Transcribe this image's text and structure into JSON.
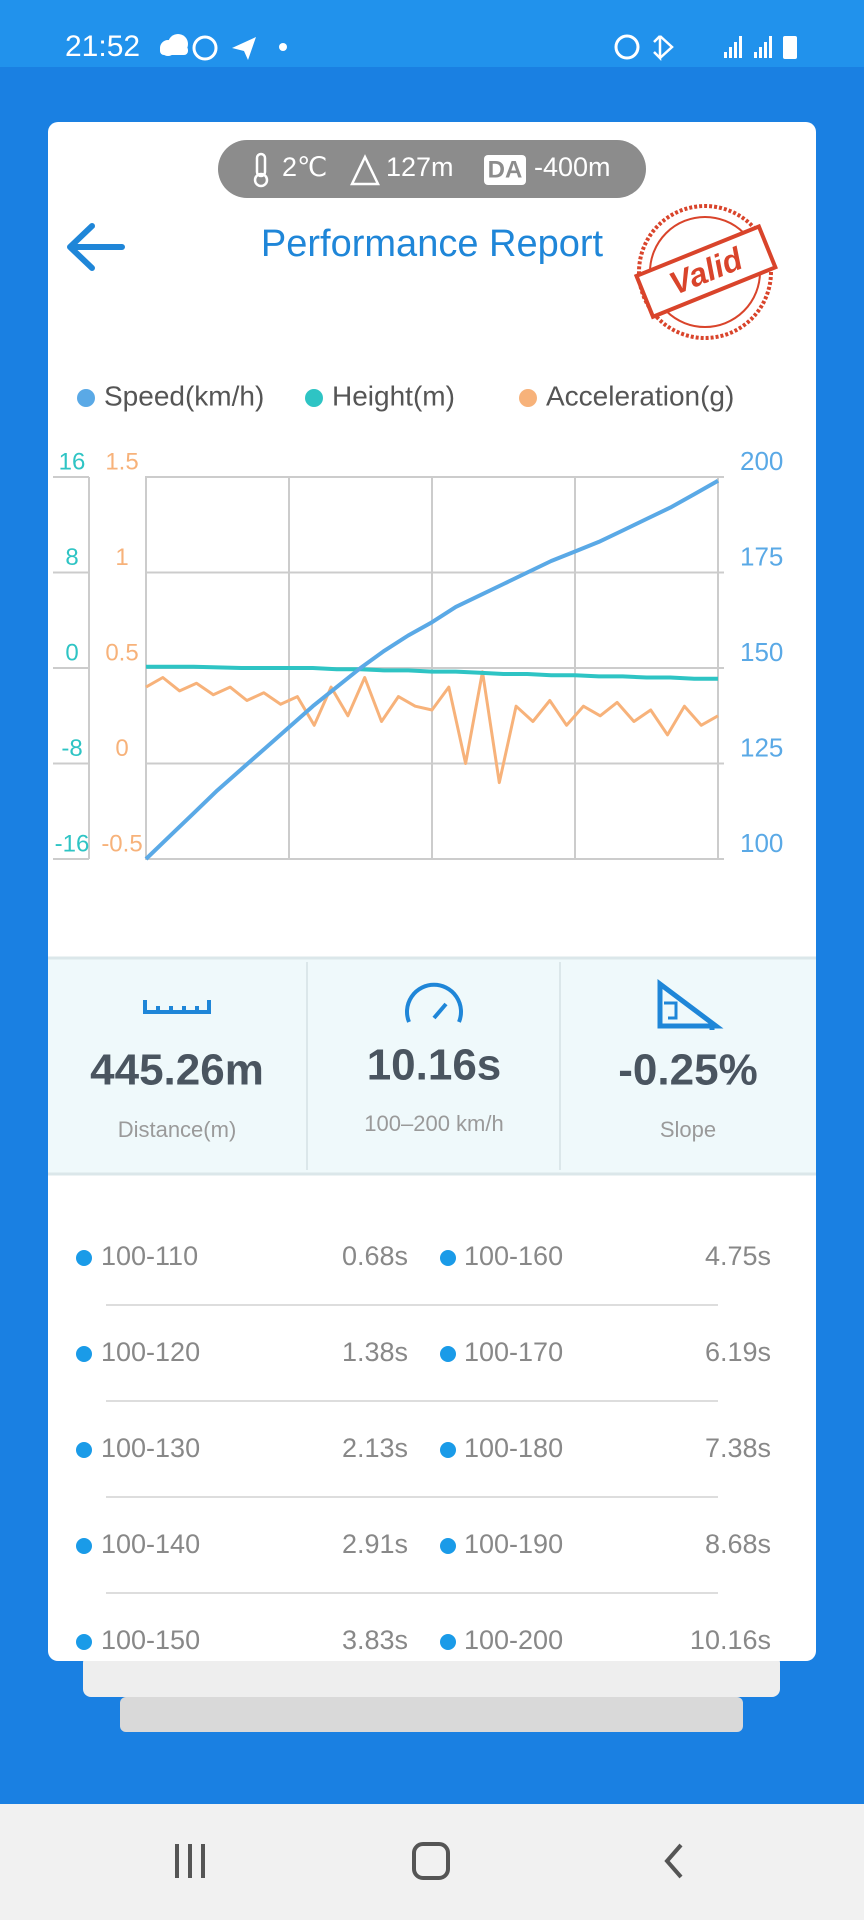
{
  "status_bar": {
    "time": "21:52"
  },
  "conditions": {
    "temperature": "2℃",
    "altitude": "127m",
    "da_badge": "DA",
    "density_altitude": "-400m"
  },
  "header": {
    "title": "Performance Report",
    "stamp": "Valid"
  },
  "chart_data": {
    "type": "line",
    "grid": true,
    "series": [
      {
        "name": "Speed(km/h)",
        "color": "#5aa9e6",
        "axis": "y2",
        "values": [
          100,
          106,
          112,
          118,
          123.5,
          129,
          134.5,
          140,
          145,
          150,
          154.5,
          158.5,
          162,
          166,
          169,
          172,
          175,
          178,
          180.5,
          183,
          186,
          189,
          192,
          195.5,
          199
        ]
      },
      {
        "name": "Height(m)",
        "color": "#2ec4c4",
        "axis": "y3",
        "values": [
          0.1,
          0.1,
          0.1,
          0.05,
          0,
          0,
          0,
          0,
          -0.1,
          -0.1,
          -0.2,
          -0.2,
          -0.3,
          -0.3,
          -0.4,
          -0.5,
          -0.5,
          -0.6,
          -0.6,
          -0.7,
          -0.7,
          -0.8,
          -0.8,
          -0.9,
          -0.9
        ]
      },
      {
        "name": "Acceleration(g)",
        "color": "#f7b27a",
        "axis": "y",
        "values": [
          0.4,
          0.45,
          0.38,
          0.42,
          0.36,
          0.4,
          0.33,
          0.37,
          0.31,
          0.35,
          0.2,
          0.4,
          0.25,
          0.45,
          0.22,
          0.35,
          0.3,
          0.28,
          0.4,
          0.0,
          0.48,
          -0.1,
          0.3,
          0.22,
          0.33,
          0.2,
          0.3,
          0.25,
          0.32,
          0.22,
          0.28,
          0.15,
          0.3,
          0.2,
          0.25
        ]
      }
    ],
    "ylim": [
      -0.5,
      1.5
    ],
    "yticks": [
      -0.5,
      0,
      0.5,
      1,
      1.5
    ],
    "y2lim": [
      100,
      200
    ],
    "y2ticks": [
      100,
      125,
      150,
      175,
      200
    ],
    "y3lim": [
      -16,
      16
    ],
    "y3ticks": [
      -16,
      -8,
      0,
      8,
      16
    ]
  },
  "stats": [
    {
      "value": "445.26m",
      "label": "Distance(m)"
    },
    {
      "value": "10.16s",
      "label": "100–200 km/h"
    },
    {
      "value": "-0.25%",
      "label": "Slope"
    }
  ],
  "splits": [
    [
      "100-110",
      "0.68s",
      "100-160",
      "4.75s"
    ],
    [
      "100-120",
      "1.38s",
      "100-170",
      "6.19s"
    ],
    [
      "100-130",
      "2.13s",
      "100-180",
      "7.38s"
    ],
    [
      "100-140",
      "2.91s",
      "100-190",
      "8.68s"
    ],
    [
      "100-150",
      "3.83s",
      "100-200",
      "10.16s"
    ]
  ]
}
